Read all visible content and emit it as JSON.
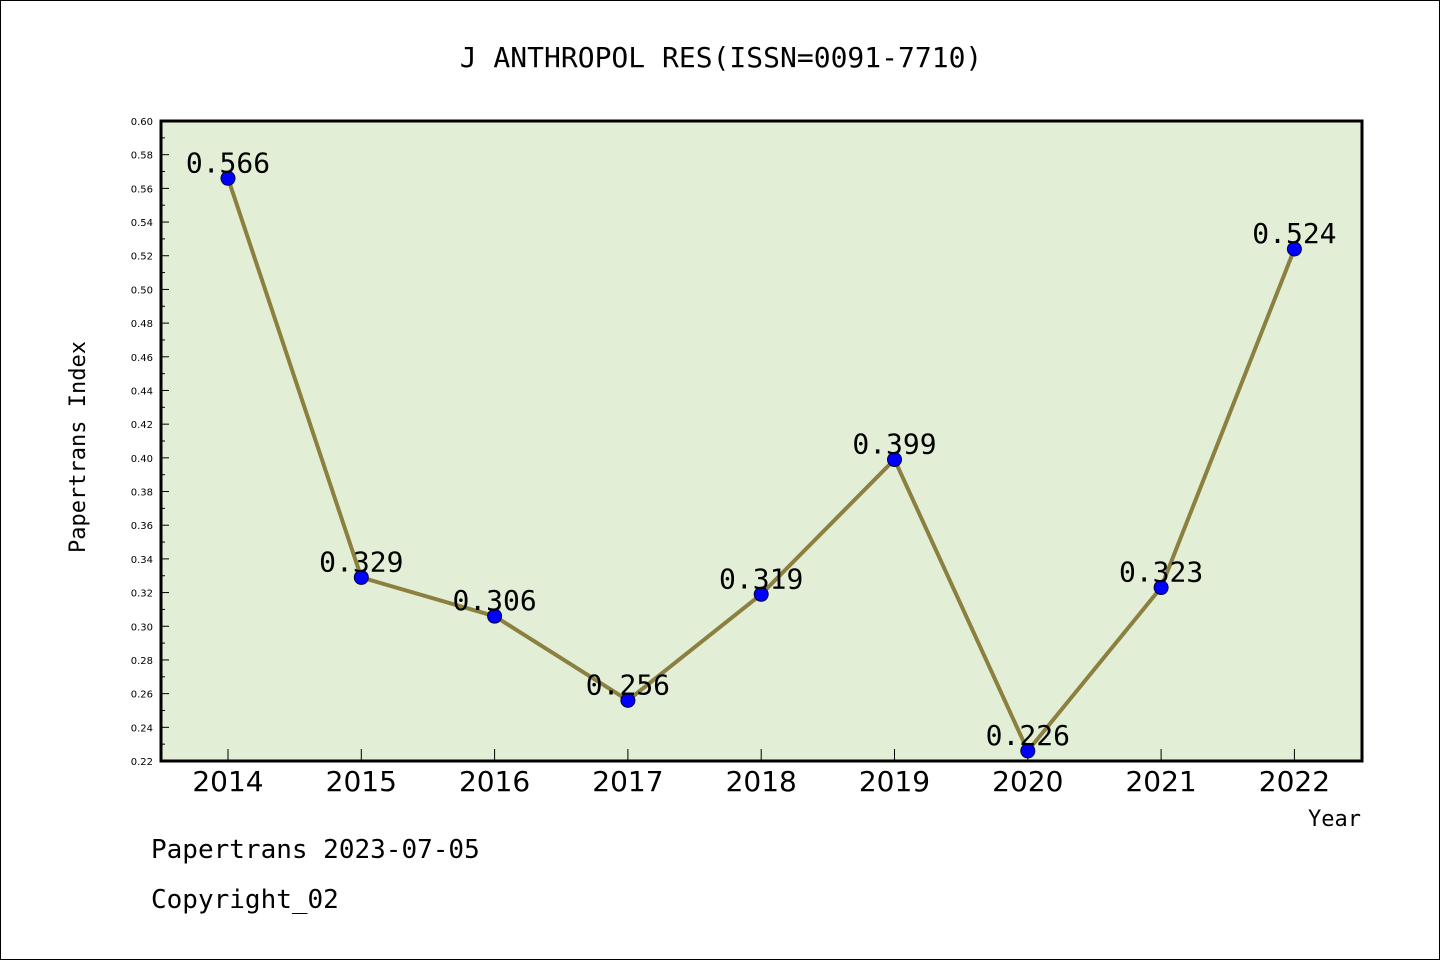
{
  "chart_data": {
    "type": "line",
    "title": "J ANTHROPOL RES(ISSN=0091-7710)",
    "xlabel": "Year",
    "ylabel": "Papertrans Index",
    "categories": [
      "2014",
      "2015",
      "2016",
      "2017",
      "2018",
      "2019",
      "2020",
      "2021",
      "2022"
    ],
    "values": [
      0.566,
      0.329,
      0.306,
      0.256,
      0.319,
      0.399,
      0.226,
      0.323,
      0.524
    ],
    "value_labels": [
      "0.566",
      "0.329",
      "0.306",
      "0.256",
      "0.319",
      "0.399",
      "0.226",
      "0.323",
      "0.524"
    ],
    "ylim": [
      0.22,
      0.6
    ],
    "yticks": [
      "0.22",
      "0.24",
      "0.26",
      "0.28",
      "0.30",
      "0.32",
      "0.34",
      "0.36",
      "0.38",
      "0.40",
      "0.42",
      "0.44",
      "0.46",
      "0.48",
      "0.50",
      "0.52",
      "0.54",
      "0.56",
      "0.58",
      "0.60"
    ],
    "grid": false,
    "plot_background": "#e2efd6",
    "line_color": "#8c8040",
    "marker_color": "#0000ff"
  },
  "footer": {
    "line1": "Papertrans 2023-07-05",
    "line2": "Copyright_02"
  }
}
